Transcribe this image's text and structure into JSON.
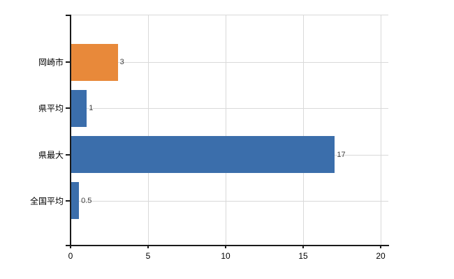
{
  "chart_data": {
    "type": "bar",
    "orientation": "horizontal",
    "title": "",
    "categories": [
      "岡崎市",
      "県平均",
      "県最大",
      "全国平均"
    ],
    "values": [
      3,
      1,
      17,
      0.5
    ],
    "value_labels": [
      "3",
      "1",
      "17",
      "0.5"
    ],
    "bar_colors": [
      "#E8893A",
      "#3B6EAB",
      "#3B6EAB",
      "#3B6EAB"
    ],
    "x_ticks": [
      0,
      5,
      10,
      15,
      20
    ],
    "x_tick_labels": [
      "0",
      "5",
      "10",
      "15",
      "20"
    ],
    "xlim": [
      0,
      20
    ],
    "grid": true,
    "legend": false,
    "colors": {
      "gridline": "#d9d9d9",
      "axis": "#1a1a1a",
      "value_label": "#3f3f3f",
      "tick_label": "#000000"
    }
  }
}
